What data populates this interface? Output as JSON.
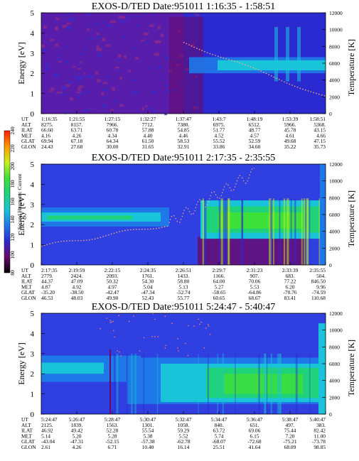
{
  "chart_data": {
    "type": "heatmap",
    "colorbar": {
      "label": "Second Harmonic Current",
      "ticks": [
        "80",
        "100",
        "120",
        "140",
        "160",
        "180",
        "200",
        "220",
        "240"
      ],
      "range": [
        80,
        240
      ],
      "colors": [
        "#000000",
        "#6a0a6a",
        "#2a2ad0",
        "#1f78e8",
        "#19c4d8",
        "#1fd27a",
        "#3ee03a",
        "#c8f01a",
        "#ff9a00",
        "#ff1a00"
      ]
    },
    "panels": [
      {
        "title": "EXOS-D/TED   Date:951011  1:16:35 - 1:58:51",
        "ylabel": "Energy [eV]",
        "y2label": "Temperature [K]",
        "ylim": [
          0,
          5
        ],
        "y2lim": [
          0,
          12000
        ],
        "yticks": [
          "0",
          "1",
          "2",
          "3",
          "4",
          "5"
        ],
        "y2ticks": [
          "0",
          "2000",
          "4000",
          "6000",
          "8000",
          "10000",
          "12000"
        ],
        "rows": [
          {
            "label": "UT",
            "values": [
              "1:16:35",
              "1:21:55",
              "1:27:15",
              "1:32:27",
              "1:37:47",
              "1:43:7",
              "1:48:19",
              "1:53:39",
              "1:58:51"
            ]
          },
          {
            "label": "ALT",
            "values": [
              "8275.",
              "8157.",
              "7966.",
              "7712.",
              "7380.",
              "6975.",
              "6512.",
              "5966.",
              "5368."
            ]
          },
          {
            "label": "ILAT",
            "values": [
              "66.60",
              "63.71",
              "60.78",
              "57.88",
              "54.85",
              "51.77",
              "48.77",
              "45.78",
              "43.15"
            ]
          },
          {
            "label": "MLT",
            "values": [
              "4.16",
              "4.26",
              "4.34",
              "4.40",
              "4.46",
              "4.52",
              "4.57",
              "4.61",
              "4.66"
            ]
          },
          {
            "label": "GLAT",
            "values": [
              "69.94",
              "67.18",
              "64.34",
              "61.50",
              "58.53",
              "55.52",
              "52.59",
              "49.68",
              "47.15"
            ]
          },
          {
            "label": "GLON",
            "values": [
              "24.43",
              "27.68",
              "30.00",
              "31.65",
              "32.91",
              "33.86",
              "34.60",
              "35.22",
              "35.73"
            ]
          }
        ]
      },
      {
        "title": "EXOS-D/TED   Date:951011  2:17:35 - 2:35:55",
        "ylabel": "Energy [eV]",
        "y2label": "Temperature [K]",
        "ylim": [
          0,
          5
        ],
        "y2lim": [
          0,
          12000
        ],
        "yticks": [
          "0",
          "1",
          "2",
          "3",
          "4",
          "5"
        ],
        "y2ticks": [
          "0",
          "2000",
          "4000",
          "6000",
          "8000",
          "10000",
          "12000"
        ],
        "rows": [
          {
            "label": "UT",
            "values": [
              "2:17:35",
              "2:19:59",
              "2:22:15",
              "2:24:35",
              "2:26:51",
              "2:29:7",
              "2:31:23",
              "2:33:39",
              "2:35:55"
            ]
          },
          {
            "label": "ALT",
            "values": [
              "2779.",
              "2424.",
              "2093.",
              "1761.",
              "1433.",
              "1166.",
              "907.",
              "683.",
              "504."
            ]
          },
          {
            "label": "ILAT",
            "values": [
              "44.37",
              "47.09",
              "50.32",
              "54.30",
              "58.80",
              "64.00",
              "70.06",
              "77.22",
              "846.50"
            ]
          },
          {
            "label": "MLT",
            "values": [
              "4.87",
              "4.92",
              "4.97",
              "5.04",
              "5.13",
              "5.27",
              "5.53",
              "6.20",
              "9.96"
            ]
          },
          {
            "label": "GLAT",
            "values": [
              "-35.20",
              "-38.50",
              "-42.47",
              "-47.34",
              "-52.74",
              "-58.65",
              "-64.86",
              "-70.76",
              "-74.59"
            ]
          },
          {
            "label": "GLON",
            "values": [
              "46.53",
              "48.03",
              "49.90",
              "52.43",
              "55.77",
              "60.65",
              "68.67",
              "83.41",
              "110.68"
            ]
          }
        ]
      },
      {
        "title": "EXOS-D/TED   Date:951011  5:24:47 - 5:40:47",
        "ylabel": "Energy [eV]",
        "y2label": "Temperature [K]",
        "ylim": [
          0,
          5
        ],
        "y2lim": [
          0,
          12000
        ],
        "yticks": [
          "0",
          "1",
          "2",
          "3",
          "4",
          "5"
        ],
        "y2ticks": [
          "0",
          "2000",
          "4000",
          "6000",
          "8000",
          "10000",
          "12000"
        ],
        "rows": [
          {
            "label": "UT",
            "values": [
              "5:24:47",
              "5:26:47",
              "5:28:47",
              "5:30:47",
              "5:32:47",
              "5:34:47",
              "5:36:47",
              "5:38:47",
              "5:40:47"
            ]
          },
          {
            "label": "ALT",
            "values": [
              "2125.",
              "1839.",
              "1563.",
              "1301.",
              "1058.",
              "840.",
              "651.",
              "497.",
              "383."
            ]
          },
          {
            "label": "ILAT",
            "values": [
              "46.92",
              "49.42",
              "52.28",
              "55.54",
              "59.29",
              "63.72",
              "69.06",
              "75.44",
              "82.42"
            ]
          },
          {
            "label": "MLT",
            "values": [
              "5.14",
              "5.20",
              "5.28",
              "5.38",
              "5.52",
              "5.74",
              "6.15",
              "7.20",
              "11.00"
            ]
          },
          {
            "label": "GLAT",
            "values": [
              "-43.04",
              "-47.31",
              "-52.15",
              "-57.38",
              "-62.78",
              "-68.07",
              "-72.68",
              "-75.21",
              "-73.78"
            ]
          },
          {
            "label": "GLON",
            "values": [
              "2.61",
              "4.26",
              "6.71",
              "10.40",
              "16.14",
              "25.51",
              "41.64",
              "68.09",
              "98.85"
            ]
          }
        ]
      }
    ]
  }
}
